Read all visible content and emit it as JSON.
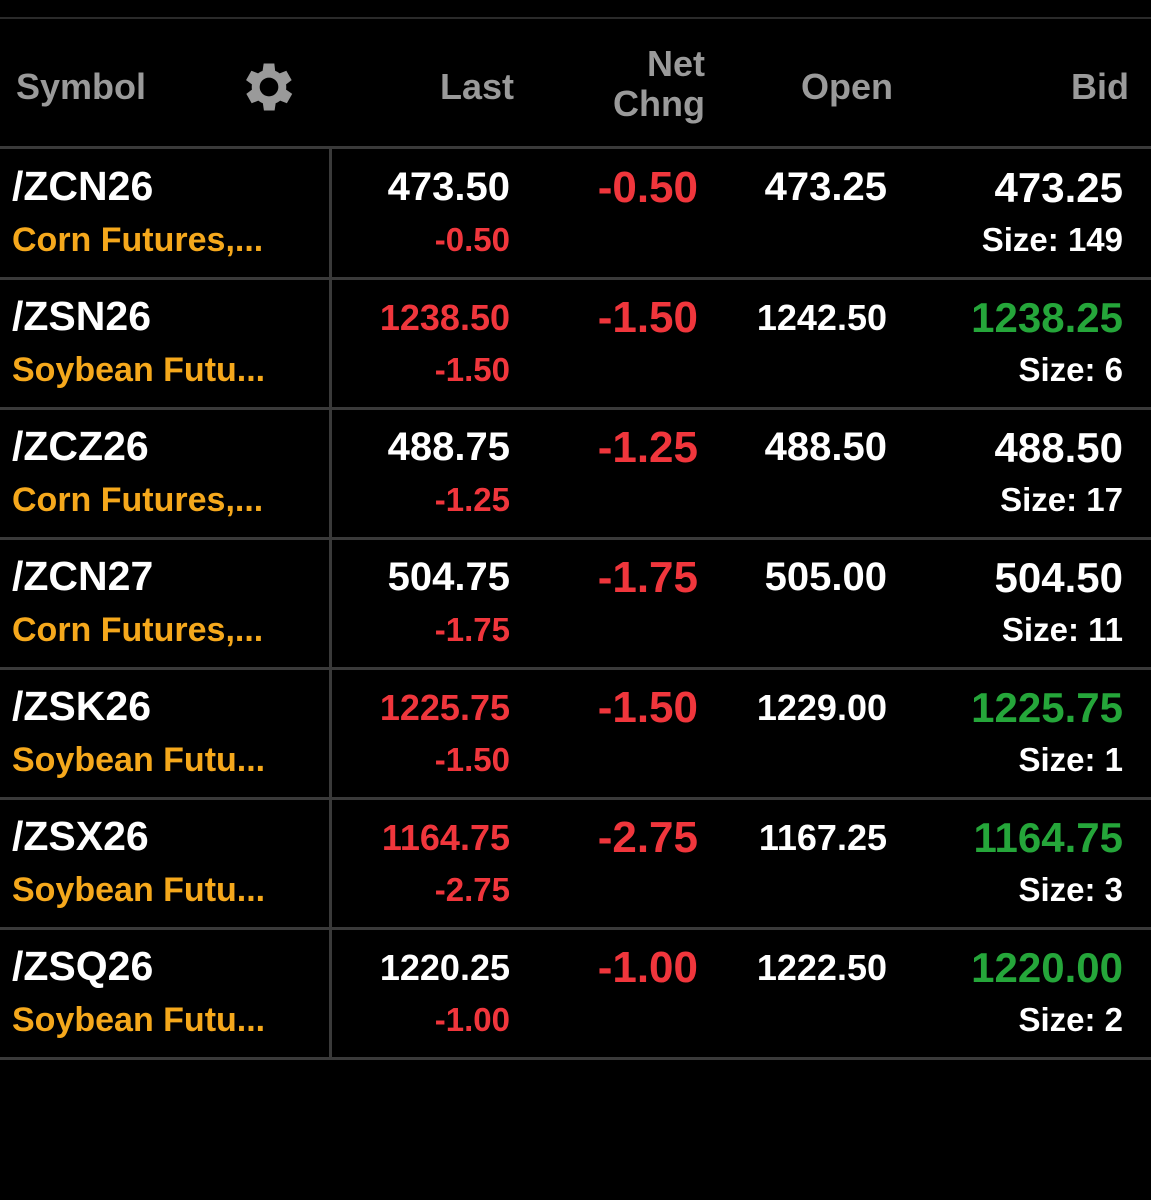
{
  "header": {
    "symbol": "Symbol",
    "last": "Last",
    "net_change": "Net Chng",
    "open": "Open",
    "bid": "Bid"
  },
  "rows": [
    {
      "symbol": "/ZCN26",
      "description": "Corn Futures,...",
      "last": "473.50",
      "last_color": "#ffffff",
      "last_change": "-0.50",
      "net_change": "-0.50",
      "open": "473.25",
      "bid": "473.25",
      "bid_color": "#ffffff",
      "bid_size": "Size: 149"
    },
    {
      "symbol": "/ZSN26",
      "description": "Soybean Futu...",
      "last": "1238.50",
      "last_color": "#f0363c",
      "last_change": "-1.50",
      "net_change": "-1.50",
      "open": "1242.50",
      "bid": "1238.25",
      "bid_color": "#25a63a",
      "bid_size": "Size: 6"
    },
    {
      "symbol": "/ZCZ26",
      "description": "Corn Futures,...",
      "last": "488.75",
      "last_color": "#ffffff",
      "last_change": "-1.25",
      "net_change": "-1.25",
      "open": "488.50",
      "bid": "488.50",
      "bid_color": "#ffffff",
      "bid_size": "Size: 17"
    },
    {
      "symbol": "/ZCN27",
      "description": "Corn Futures,...",
      "last": "504.75",
      "last_color": "#ffffff",
      "last_change": "-1.75",
      "net_change": "-1.75",
      "open": "505.00",
      "bid": "504.50",
      "bid_color": "#ffffff",
      "bid_size": "Size: 11"
    },
    {
      "symbol": "/ZSK26",
      "description": "Soybean Futu...",
      "last": "1225.75",
      "last_color": "#f0363c",
      "last_change": "-1.50",
      "net_change": "-1.50",
      "open": "1229.00",
      "bid": "1225.75",
      "bid_color": "#25a63a",
      "bid_size": "Size: 1"
    },
    {
      "symbol": "/ZSX26",
      "description": "Soybean Futu...",
      "last": "1164.75",
      "last_color": "#f0363c",
      "last_change": "-2.75",
      "net_change": "-2.75",
      "open": "1167.25",
      "bid": "1164.75",
      "bid_color": "#25a63a",
      "bid_size": "Size: 3"
    },
    {
      "symbol": "/ZSQ26",
      "description": "Soybean Futu...",
      "last": "1220.25",
      "last_color": "#ffffff",
      "last_change": "-1.00",
      "net_change": "-1.00",
      "open": "1222.50",
      "bid": "1220.00",
      "bid_color": "#25a63a",
      "bid_size": "Size: 2"
    }
  ]
}
